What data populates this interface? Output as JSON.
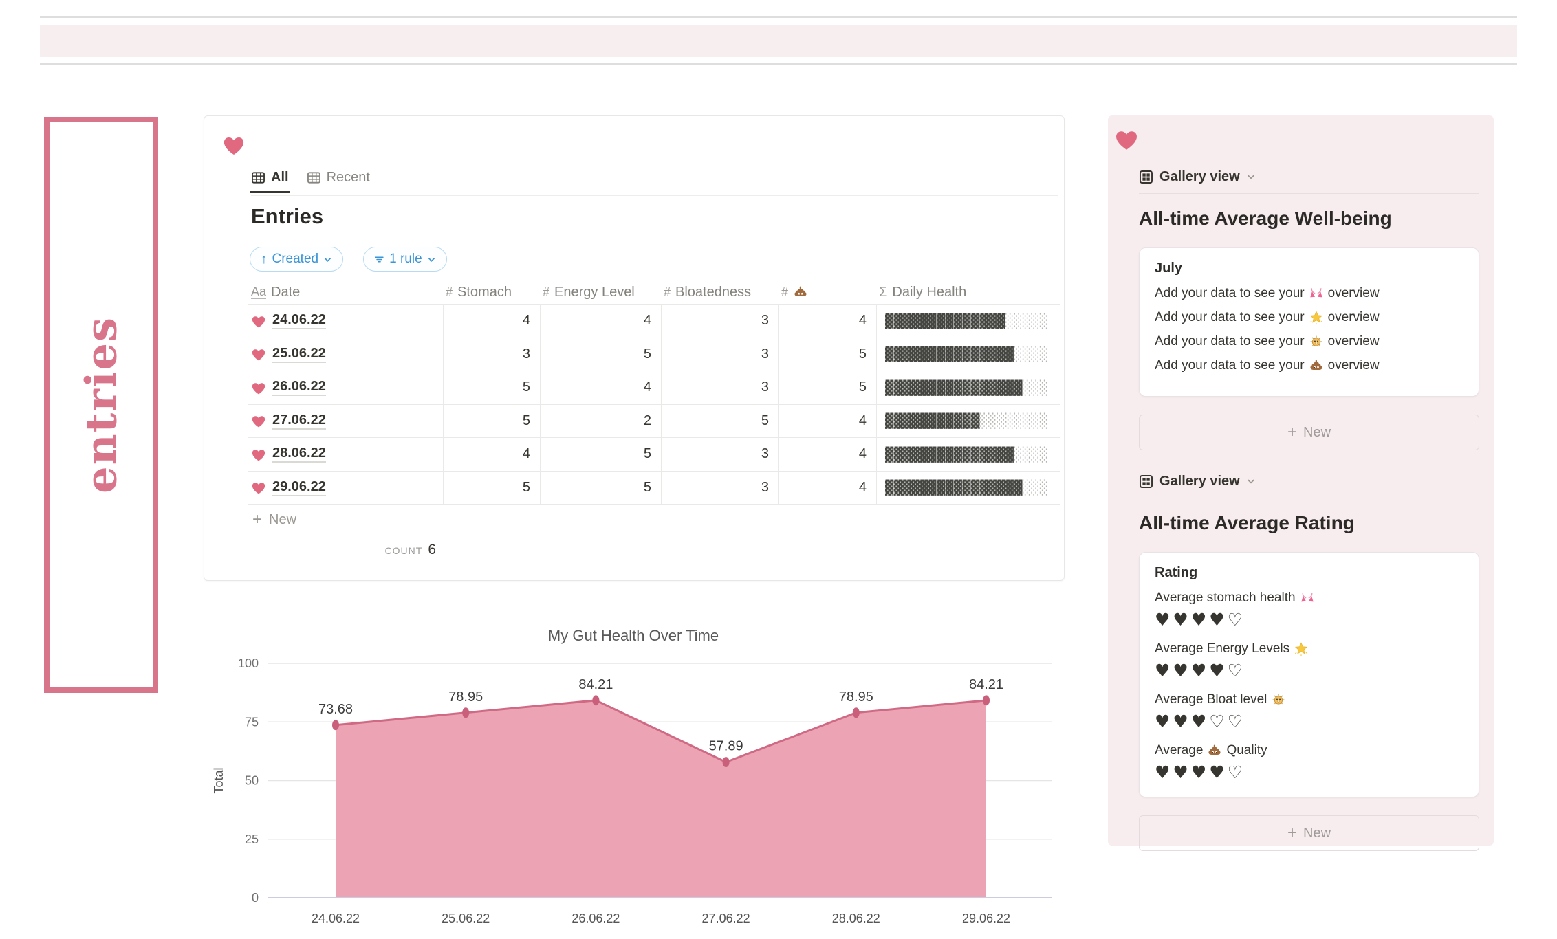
{
  "colors": {
    "accent_pink": "#e0697f",
    "frame_pink": "#d9758b",
    "panel_pink": "#f7edef",
    "pill_blue": "#3a94d6",
    "text_dark": "#37352f",
    "text_gray": "#84827c",
    "bar_fill_dark": "#454542",
    "bar_fill_light": "#b5b5b1"
  },
  "left_label": {
    "text": "entries"
  },
  "entries_card": {
    "tabs": [
      {
        "label": "All",
        "active": true
      },
      {
        "label": "Recent",
        "active": false
      }
    ],
    "title": "Entries",
    "sort_pill": {
      "label": "Created"
    },
    "filter_pill": {
      "label": "1 rule"
    },
    "table": {
      "columns": [
        {
          "type_icon": "Aa",
          "label": "Date"
        },
        {
          "type_icon": "#",
          "label": "Stomach"
        },
        {
          "type_icon": "#",
          "label": "Energy Level"
        },
        {
          "type_icon": "#",
          "label": "Bloatedness"
        },
        {
          "type_icon": "#",
          "label": "",
          "emoji": "poop"
        },
        {
          "type_icon": "Σ",
          "label": "Daily Health"
        }
      ],
      "rows": [
        {
          "date": "24.06.22",
          "stomach": 4,
          "energy_level": 4,
          "bloatedness": 3,
          "poop": 4,
          "daily_health_pct": 73.68
        },
        {
          "date": "25.06.22",
          "stomach": 3,
          "energy_level": 5,
          "bloatedness": 3,
          "poop": 5,
          "daily_health_pct": 78.95
        },
        {
          "date": "26.06.22",
          "stomach": 5,
          "energy_level": 4,
          "bloatedness": 3,
          "poop": 5,
          "daily_health_pct": 84.21
        },
        {
          "date": "27.06.22",
          "stomach": 5,
          "energy_level": 2,
          "bloatedness": 5,
          "poop": 4,
          "daily_health_pct": 57.89
        },
        {
          "date": "28.06.22",
          "stomach": 4,
          "energy_level": 5,
          "bloatedness": 3,
          "poop": 4,
          "daily_health_pct": 78.95
        },
        {
          "date": "29.06.22",
          "stomach": 5,
          "energy_level": 5,
          "bloatedness": 3,
          "poop": 4,
          "daily_health_pct": 84.21
        }
      ],
      "new_row_label": "New",
      "aggregate": {
        "label": "COUNT",
        "value": "6"
      }
    }
  },
  "chart_data": {
    "type": "area",
    "title": "My Gut Health Over Time",
    "x": [
      "24.06.22",
      "25.06.22",
      "26.06.22",
      "27.06.22",
      "28.06.22",
      "29.06.22"
    ],
    "values": [
      73.68,
      78.95,
      84.21,
      57.89,
      78.95,
      84.21
    ],
    "point_labels": [
      "73.68",
      "78.95",
      "84.21",
      "57.89",
      "78.95",
      "84.21"
    ],
    "xlabel": "",
    "ylabel": "Total",
    "ylim": [
      0,
      100
    ],
    "yticks": [
      0,
      25,
      50,
      75,
      100
    ],
    "grid": true,
    "legend": false,
    "line_color": "#d06a84",
    "fill_color": "#eca4b5",
    "marker_color": "#c95f7b"
  },
  "right_panel": {
    "wellbeing": {
      "view_label": "Gallery view",
      "heading": "All-time Average Well-being",
      "card_title": "July",
      "lines": [
        {
          "prefix": "Add your data to see your",
          "emoji": "bikini",
          "suffix": "overview"
        },
        {
          "prefix": "Add your data to see your",
          "emoji": "star",
          "suffix": "overview"
        },
        {
          "prefix": "Add your data to see your",
          "emoji": "blowfish",
          "suffix": "overview"
        },
        {
          "prefix": "Add your data to see your",
          "emoji": "poop",
          "suffix": "overview"
        }
      ],
      "new_button_label": "New"
    },
    "rating": {
      "view_label": "Gallery view",
      "heading": "All-time Average Rating",
      "card_title": "Rating",
      "items": [
        {
          "prefix": "Average stomach health",
          "emoji": "bikini",
          "suffix": "",
          "filled": 4,
          "total": 5
        },
        {
          "prefix": "Average Energy Levels",
          "emoji": "star",
          "suffix": "",
          "filled": 4,
          "total": 5
        },
        {
          "prefix": "Average Bloat level",
          "emoji": "blowfish",
          "suffix": "",
          "filled": 3,
          "total": 5
        },
        {
          "prefix": "Average",
          "emoji": "poop",
          "suffix": "Quality",
          "filled": 4,
          "total": 5
        }
      ],
      "new_button_label": "New"
    }
  }
}
